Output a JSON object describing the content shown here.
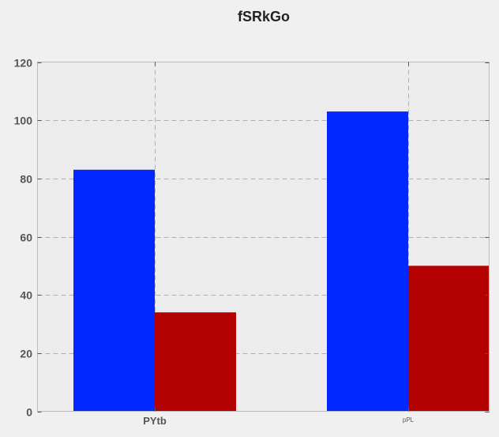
{
  "chart_data": {
    "type": "bar",
    "title": "fSRkGo",
    "xlabel": "",
    "ylabel": "",
    "categories": [
      "PYtb",
      "pPL"
    ],
    "series": [
      {
        "values": [
          83,
          103
        ],
        "color": "#0028ff"
      },
      {
        "values": [
          34,
          50
        ],
        "color": "#b30000"
      }
    ],
    "ylim": [
      0,
      120
    ],
    "yticks": [
      0,
      20,
      40,
      60,
      80,
      100,
      120
    ],
    "grid": true,
    "legend": "none",
    "colors": {
      "background": "#f0f0f0",
      "plot_background": "#ececec",
      "grid": "#b0b0b0",
      "axis": "#bcbcbc"
    }
  }
}
